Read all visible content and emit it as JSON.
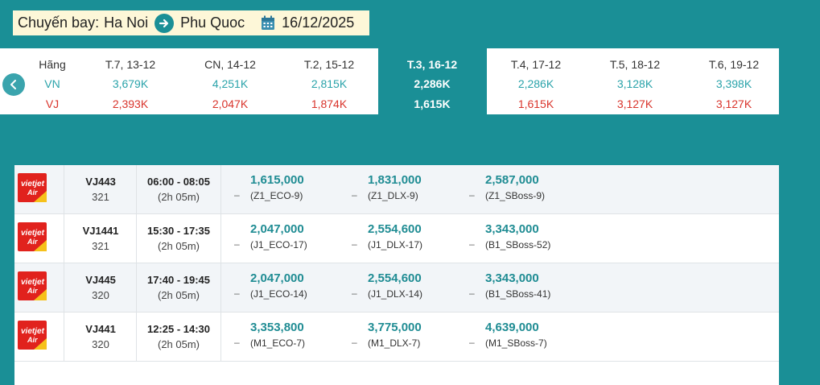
{
  "header": {
    "label": "Chuyến bay:",
    "from": "Ha Noi",
    "to": "Phu Quoc",
    "date": "16/12/2025"
  },
  "date_strip": {
    "label_header": "Hãng",
    "airline_vn": "VN",
    "airline_vj": "VJ",
    "days": [
      {
        "label": "T.7, 13-12",
        "vn": "3,679K",
        "vj": "2,393K"
      },
      {
        "label": "CN, 14-12",
        "vn": "4,251K",
        "vj": "2,047K"
      },
      {
        "label": "T.2, 15-12",
        "vn": "2,815K",
        "vj": "1,874K"
      },
      {
        "label": "T.3, 16-12",
        "vn": "2,286K",
        "vj": "1,615K"
      },
      {
        "label": "T.4, 17-12",
        "vn": "2,286K",
        "vj": "1,615K"
      },
      {
        "label": "T.5, 18-12",
        "vn": "3,128K",
        "vj": "3,127K"
      },
      {
        "label": "T.6, 19-12",
        "vn": "3,398K",
        "vj": "3,127K"
      }
    ]
  },
  "flights": [
    {
      "no": "VJ443",
      "aircraft": "321",
      "time": "06:00 - 08:05",
      "duration": "(2h 05m)",
      "fares": [
        {
          "price": "1,615,000",
          "code": "(Z1_ECO-9)"
        },
        {
          "price": "1,831,000",
          "code": "(Z1_DLX-9)"
        },
        {
          "price": "2,587,000",
          "code": "(Z1_SBoss-9)"
        }
      ]
    },
    {
      "no": "VJ1441",
      "aircraft": "321",
      "time": "15:30 - 17:35",
      "duration": "(2h 05m)",
      "fares": [
        {
          "price": "2,047,000",
          "code": "(J1_ECO-17)"
        },
        {
          "price": "2,554,600",
          "code": "(J1_DLX-17)"
        },
        {
          "price": "3,343,000",
          "code": "(B1_SBoss-52)"
        }
      ]
    },
    {
      "no": "VJ445",
      "aircraft": "320",
      "time": "17:40 - 19:45",
      "duration": "(2h 05m)",
      "fares": [
        {
          "price": "2,047,000",
          "code": "(J1_ECO-14)"
        },
        {
          "price": "2,554,600",
          "code": "(J1_DLX-14)"
        },
        {
          "price": "3,343,000",
          "code": "(B1_SBoss-41)"
        }
      ]
    },
    {
      "no": "VJ441",
      "aircraft": "320",
      "time": "12:25 - 14:30",
      "duration": "(2h 05m)",
      "fares": [
        {
          "price": "3,353,800",
          "code": "(M1_ECO-7)"
        },
        {
          "price": "3,775,000",
          "code": "(M1_DLX-7)"
        },
        {
          "price": "4,639,000",
          "code": "(M1_SBoss-7)"
        }
      ]
    }
  ],
  "fare_dash": "–",
  "logo_text": "vietjet Air",
  "colors": {
    "teal": "#1a8f96",
    "price": "#1f8c93",
    "vj_red": "#d9342b",
    "logo_red": "#e1221d",
    "logo_yellow": "#f6c11b"
  }
}
